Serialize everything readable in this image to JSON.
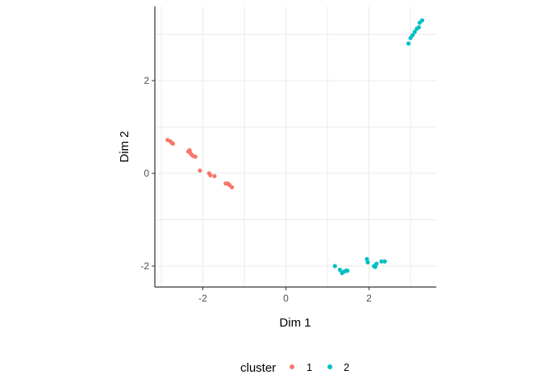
{
  "chart_data": {
    "type": "scatter",
    "xlabel": "Dim 1",
    "ylabel": "Dim 2",
    "xlim": [
      -3.15,
      3.6
    ],
    "ylim": [
      -2.45,
      3.6
    ],
    "x_ticks": [
      -2,
      0,
      2
    ],
    "y_ticks": [
      -2,
      0,
      2
    ],
    "x_tick_labels": [
      "-2",
      "0",
      "2"
    ],
    "y_tick_labels": [
      "-2",
      "0",
      "2"
    ],
    "grid": true,
    "legend": {
      "title": "cluster",
      "position": "bottom"
    },
    "series": [
      {
        "name": "1",
        "color": "#F8766D",
        "points": [
          [
            -2.85,
            0.72
          ],
          [
            -2.78,
            0.69
          ],
          [
            -2.75,
            0.66
          ],
          [
            -2.72,
            0.64
          ],
          [
            -2.35,
            0.47
          ],
          [
            -2.32,
            0.5
          ],
          [
            -2.3,
            0.44
          ],
          [
            -2.27,
            0.4
          ],
          [
            -2.22,
            0.37
          ],
          [
            -2.18,
            0.36
          ],
          [
            -2.07,
            0.06
          ],
          [
            -1.85,
            0.0
          ],
          [
            -1.82,
            -0.04
          ],
          [
            -1.72,
            -0.06
          ],
          [
            -1.45,
            -0.22
          ],
          [
            -1.4,
            -0.22
          ],
          [
            -1.36,
            -0.25
          ],
          [
            -1.3,
            -0.3
          ]
        ]
      },
      {
        "name": "2",
        "color": "#00BFC4",
        "points": [
          [
            1.18,
            -2.0
          ],
          [
            1.3,
            -2.08
          ],
          [
            1.35,
            -2.15
          ],
          [
            1.4,
            -2.12
          ],
          [
            1.45,
            -2.1
          ],
          [
            1.48,
            -2.1
          ],
          [
            1.95,
            -1.85
          ],
          [
            1.97,
            -1.92
          ],
          [
            2.12,
            -2.0
          ],
          [
            2.15,
            -2.02
          ],
          [
            2.18,
            -1.95
          ],
          [
            2.3,
            -1.9
          ],
          [
            2.38,
            -1.9
          ],
          [
            2.95,
            2.8
          ],
          [
            3.0,
            2.92
          ],
          [
            3.05,
            2.98
          ],
          [
            3.1,
            3.05
          ],
          [
            3.15,
            3.12
          ],
          [
            3.2,
            3.15
          ],
          [
            3.22,
            3.25
          ],
          [
            3.28,
            3.3
          ]
        ]
      }
    ]
  }
}
